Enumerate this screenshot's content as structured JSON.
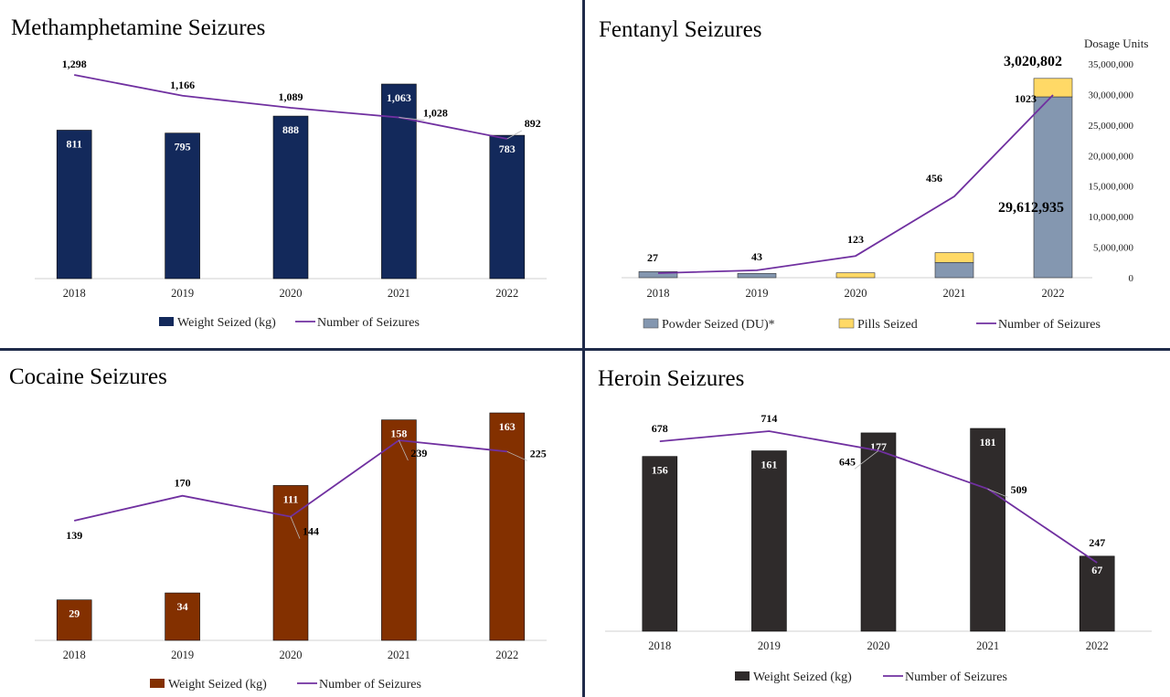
{
  "chart_data": [
    {
      "type": "bar",
      "title": "Methamphetamine Seizures",
      "categories": [
        "2018",
        "2019",
        "2020",
        "2021",
        "2022"
      ],
      "series": [
        {
          "name": "Weight Seized (kg)",
          "type": "bar",
          "values": [
            811,
            795,
            888,
            1063,
            783
          ],
          "color": "#13295b",
          "labels": [
            "811",
            "795",
            "888",
            "1,063",
            "783"
          ]
        },
        {
          "name": "Number of Seizures",
          "type": "line",
          "values": [
            1298,
            1166,
            1089,
            1028,
            892
          ],
          "color": "#7030a0",
          "labels": [
            "1,298",
            "1,166",
            "1,089",
            "1,028",
            "892"
          ]
        }
      ],
      "legend": "bottom"
    },
    {
      "type": "bar",
      "title": "Fentanyl Seizures",
      "categories": [
        "2018",
        "2019",
        "2020",
        "2021",
        "2022"
      ],
      "y_axis_title": "Dosage Units",
      "yticks": [
        "0",
        "5,000,000",
        "10,000,000",
        "15,000,000",
        "20,000,000",
        "25,000,000",
        "30,000,000",
        "35,000,000"
      ],
      "ylim": [
        0,
        35000000
      ],
      "series": [
        {
          "name": "Powder Seized (DU)*",
          "type": "stacked-bar",
          "values": [
            1000000,
            700000,
            0,
            2500000,
            29612935
          ],
          "color": "#8497b0"
        },
        {
          "name": "Pills Seized",
          "type": "stacked-bar",
          "values": [
            0,
            0,
            800000,
            1600000,
            3020802
          ],
          "color": "#ffd966"
        },
        {
          "name": "Number of Seizures",
          "type": "line",
          "values": [
            27,
            43,
            123,
            456,
            1023
          ],
          "color": "#7030a0",
          "labels": [
            "27",
            "43",
            "123",
            "456",
            "1023"
          ]
        }
      ],
      "annotations": [
        "3,020,802",
        "29,612,935"
      ],
      "legend": "bottom"
    },
    {
      "type": "bar",
      "title": "Cocaine Seizures",
      "categories": [
        "2018",
        "2019",
        "2020",
        "2021",
        "2022"
      ],
      "series": [
        {
          "name": "Weight Seized (kg)",
          "type": "bar",
          "values": [
            29,
            34,
            111,
            158,
            163
          ],
          "color": "#833000",
          "labels": [
            "29",
            "34",
            "111",
            "158",
            "163"
          ]
        },
        {
          "name": "Number of Seizures",
          "type": "line",
          "values": [
            139,
            170,
            144,
            239,
            225
          ],
          "color": "#7030a0",
          "labels": [
            "139",
            "170",
            "144",
            "239",
            "225"
          ]
        }
      ],
      "legend": "bottom"
    },
    {
      "type": "bar",
      "title": "Heroin Seizures",
      "categories": [
        "2018",
        "2019",
        "2020",
        "2021",
        "2022"
      ],
      "series": [
        {
          "name": "Weight Seized (kg)",
          "type": "bar",
          "values": [
            156,
            161,
            177,
            181,
            67
          ],
          "color": "#2f2b2b",
          "labels": [
            "156",
            "161",
            "177",
            "181",
            "67"
          ]
        },
        {
          "name": "Number of Seizures",
          "type": "line",
          "values": [
            678,
            714,
            645,
            509,
            247
          ],
          "color": "#7030a0",
          "labels": [
            "678",
            "714",
            "645",
            "509",
            "247"
          ]
        }
      ],
      "legend": "bottom"
    }
  ]
}
